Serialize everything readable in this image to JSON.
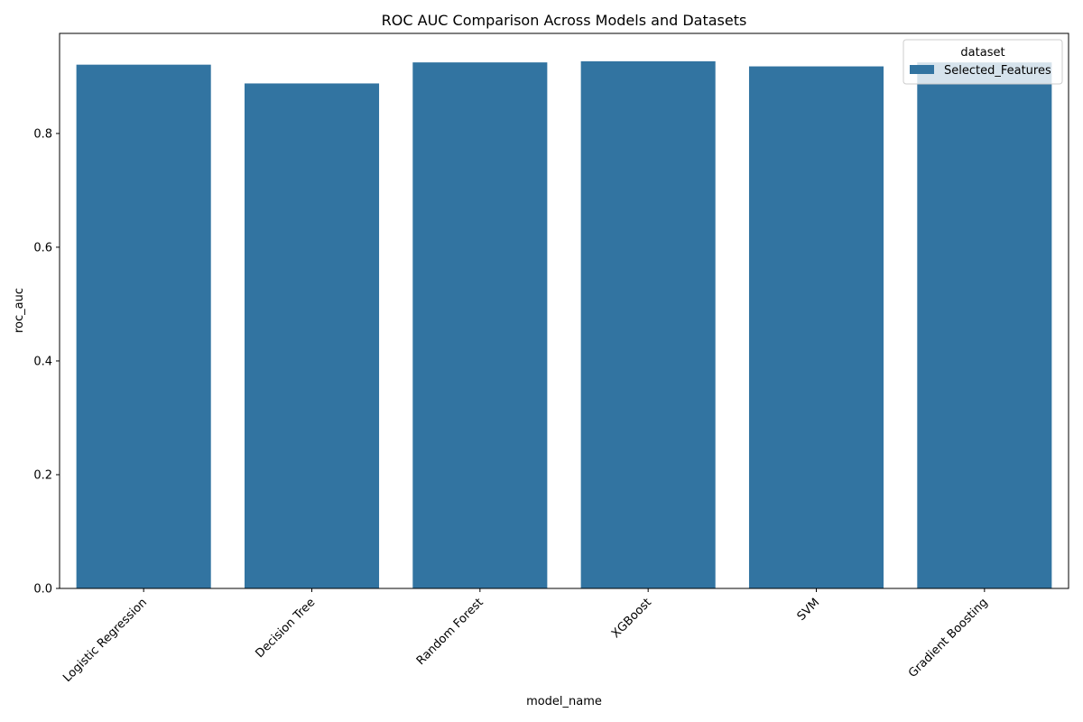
{
  "chart_data": {
    "type": "bar",
    "title": "ROC AUC Comparison Across Models and Datasets",
    "xlabel": "model_name",
    "ylabel": "roc_auc",
    "categories": [
      "Logistic Regression",
      "Decision Tree",
      "Random Forest",
      "XGBoost",
      "SVM",
      "Gradient Boosting"
    ],
    "series": [
      {
        "name": "Selected_Features",
        "values": [
          0.921,
          0.888,
          0.925,
          0.927,
          0.918,
          0.925
        ]
      }
    ],
    "ylim": [
      0,
      0.976
    ],
    "yticks": [
      0.0,
      0.2,
      0.4,
      0.6,
      0.8
    ],
    "ytick_labels": [
      "0.0",
      "0.2",
      "0.4",
      "0.6",
      "0.8"
    ],
    "grid": false,
    "legend": {
      "title": "dataset",
      "placement": "top-right"
    },
    "colors": {
      "bar": "#3274a1"
    }
  }
}
